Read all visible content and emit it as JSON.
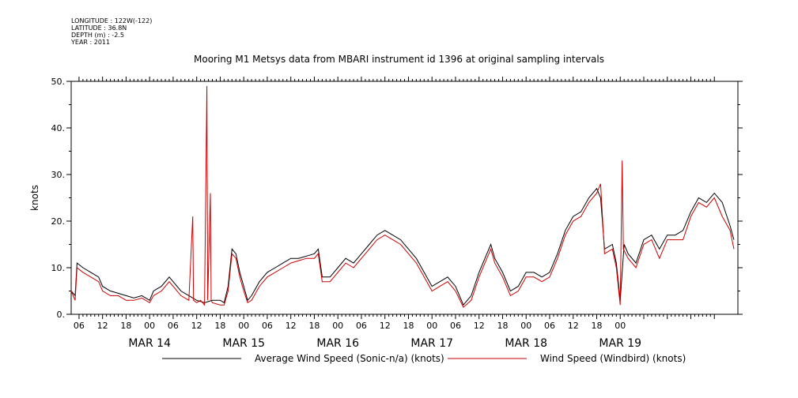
{
  "meta": {
    "longitude": "LONGITUDE : 122W(-122)",
    "latitude": "LATITUDE : 36.8N",
    "depth": "DEPTH (m) : -2.5",
    "year": "YEAR : 2011"
  },
  "chart_data": {
    "type": "line",
    "title": "Mooring M1 Metsys data from MBARI instrument id 1396 at original sampling intervals",
    "xlabel": "",
    "ylabel": "knots",
    "ylim": [
      0,
      50
    ],
    "yticks": [
      "0.",
      "10.",
      "20.",
      "30.",
      "40.",
      "50."
    ],
    "xlim_hours": [
      -20,
      138
    ],
    "hour_ticks": [
      "06",
      "12",
      "18",
      "00",
      "06",
      "12",
      "18",
      "00",
      "06",
      "12",
      "18",
      "00",
      "06",
      "12",
      "18",
      "00",
      "06",
      "12",
      "18",
      "00",
      "06",
      "12",
      "18",
      "00"
    ],
    "day_labels": [
      "MAR 14",
      "MAR 15",
      "MAR 16",
      "MAR 17",
      "MAR 18",
      "MAR 19"
    ],
    "x_unit": "hours since MAR 14 00:00",
    "series": [
      {
        "name": "Average Wind Speed (Sonic-n/a) (knots)",
        "color": "#000000",
        "points": [
          [
            -20,
            5
          ],
          [
            -19,
            4
          ],
          [
            -18.5,
            11
          ],
          [
            -17,
            10
          ],
          [
            -15,
            9
          ],
          [
            -13,
            8
          ],
          [
            -12,
            6
          ],
          [
            -10,
            5
          ],
          [
            -8,
            4.5
          ],
          [
            -6,
            4
          ],
          [
            -4,
            3.5
          ],
          [
            -2,
            4
          ],
          [
            0,
            3
          ],
          [
            1,
            5
          ],
          [
            3,
            6
          ],
          [
            5,
            8
          ],
          [
            6,
            7
          ],
          [
            8,
            5
          ],
          [
            10,
            4
          ],
          [
            12,
            3
          ],
          [
            14,
            2.5
          ],
          [
            16,
            3
          ],
          [
            18,
            3
          ],
          [
            19,
            2.5
          ],
          [
            20,
            6
          ],
          [
            21,
            14
          ],
          [
            22,
            13
          ],
          [
            23,
            9
          ],
          [
            24,
            6
          ],
          [
            25,
            3
          ],
          [
            26,
            4
          ],
          [
            28,
            7
          ],
          [
            30,
            9
          ],
          [
            32,
            10
          ],
          [
            34,
            11
          ],
          [
            36,
            12
          ],
          [
            38,
            12
          ],
          [
            40,
            12.5
          ],
          [
            42,
            13
          ],
          [
            43,
            14
          ],
          [
            44,
            8
          ],
          [
            46,
            8
          ],
          [
            48,
            10
          ],
          [
            50,
            12
          ],
          [
            52,
            11
          ],
          [
            54,
            13
          ],
          [
            56,
            15
          ],
          [
            58,
            17
          ],
          [
            60,
            18
          ],
          [
            62,
            17
          ],
          [
            64,
            16
          ],
          [
            66,
            14
          ],
          [
            68,
            12
          ],
          [
            70,
            9
          ],
          [
            72,
            6
          ],
          [
            74,
            7
          ],
          [
            76,
            8
          ],
          [
            78,
            6
          ],
          [
            80,
            2
          ],
          [
            82,
            4
          ],
          [
            84,
            9
          ],
          [
            86,
            13
          ],
          [
            87,
            15
          ],
          [
            88,
            12
          ],
          [
            90,
            9
          ],
          [
            92,
            5
          ],
          [
            94,
            6
          ],
          [
            96,
            9
          ],
          [
            98,
            9
          ],
          [
            100,
            8
          ],
          [
            102,
            9
          ],
          [
            104,
            13
          ],
          [
            106,
            18
          ],
          [
            108,
            21
          ],
          [
            110,
            22
          ],
          [
            112,
            25
          ],
          [
            114,
            27
          ],
          [
            115,
            25
          ],
          [
            116,
            14
          ],
          [
            118,
            15
          ],
          [
            119,
            11
          ],
          [
            120,
            3
          ],
          [
            121,
            15
          ],
          [
            122,
            13
          ],
          [
            124,
            11
          ],
          [
            126,
            16
          ],
          [
            128,
            17
          ],
          [
            130,
            14
          ],
          [
            132,
            17
          ],
          [
            134,
            17
          ],
          [
            136,
            18
          ],
          [
            138,
            22
          ],
          [
            140,
            25
          ],
          [
            142,
            24
          ],
          [
            144,
            26
          ],
          [
            146,
            24
          ],
          [
            148,
            19
          ],
          [
            149,
            16
          ]
        ]
      },
      {
        "name": "Wind Speed (Windbird) (knots)",
        "color": "#cc0000",
        "points": [
          [
            -20,
            5
          ],
          [
            -19,
            3
          ],
          [
            -18.5,
            10
          ],
          [
            -17,
            9
          ],
          [
            -15,
            8
          ],
          [
            -13,
            7
          ],
          [
            -12,
            5
          ],
          [
            -10,
            4
          ],
          [
            -8,
            4
          ],
          [
            -6,
            3
          ],
          [
            -4,
            3
          ],
          [
            -2,
            3.5
          ],
          [
            0,
            2.5
          ],
          [
            1,
            4
          ],
          [
            3,
            5
          ],
          [
            5,
            7
          ],
          [
            6,
            6
          ],
          [
            8,
            4
          ],
          [
            10,
            3
          ],
          [
            11,
            21
          ],
          [
            11.2,
            3
          ],
          [
            12,
            2.5
          ],
          [
            13,
            3
          ],
          [
            14,
            2
          ],
          [
            14.6,
            49
          ],
          [
            14.8,
            3
          ],
          [
            15.5,
            26
          ],
          [
            15.7,
            3
          ],
          [
            16,
            2.5
          ],
          [
            18,
            2
          ],
          [
            19,
            2
          ],
          [
            20,
            5
          ],
          [
            21,
            13
          ],
          [
            22,
            12
          ],
          [
            23,
            8
          ],
          [
            24,
            5
          ],
          [
            25,
            2.5
          ],
          [
            26,
            3
          ],
          [
            28,
            6
          ],
          [
            30,
            8
          ],
          [
            32,
            9
          ],
          [
            34,
            10
          ],
          [
            36,
            11
          ],
          [
            38,
            11.5
          ],
          [
            40,
            12
          ],
          [
            42,
            12
          ],
          [
            43,
            13
          ],
          [
            44,
            7
          ],
          [
            46,
            7
          ],
          [
            48,
            9
          ],
          [
            50,
            11
          ],
          [
            52,
            10
          ],
          [
            54,
            12
          ],
          [
            56,
            14
          ],
          [
            58,
            16
          ],
          [
            60,
            17
          ],
          [
            62,
            16
          ],
          [
            64,
            15
          ],
          [
            66,
            13
          ],
          [
            68,
            11
          ],
          [
            70,
            8
          ],
          [
            72,
            5
          ],
          [
            74,
            6
          ],
          [
            76,
            7
          ],
          [
            78,
            5
          ],
          [
            80,
            1.5
          ],
          [
            82,
            3
          ],
          [
            84,
            8
          ],
          [
            86,
            12
          ],
          [
            87,
            14
          ],
          [
            88,
            11
          ],
          [
            90,
            8
          ],
          [
            92,
            4
          ],
          [
            94,
            5
          ],
          [
            96,
            8
          ],
          [
            98,
            8
          ],
          [
            100,
            7
          ],
          [
            102,
            8
          ],
          [
            104,
            12
          ],
          [
            106,
            17
          ],
          [
            108,
            20
          ],
          [
            110,
            21
          ],
          [
            112,
            24
          ],
          [
            114,
            26
          ],
          [
            115,
            28
          ],
          [
            116,
            13
          ],
          [
            118,
            14
          ],
          [
            119,
            10
          ],
          [
            120,
            2
          ],
          [
            120.5,
            33
          ],
          [
            120.8,
            14
          ],
          [
            122,
            12
          ],
          [
            124,
            10
          ],
          [
            126,
            15
          ],
          [
            128,
            16
          ],
          [
            130,
            12
          ],
          [
            132,
            16
          ],
          [
            134,
            16
          ],
          [
            136,
            16
          ],
          [
            138,
            21
          ],
          [
            140,
            24
          ],
          [
            142,
            23
          ],
          [
            144,
            25
          ],
          [
            146,
            21
          ],
          [
            148,
            18
          ],
          [
            149,
            14
          ]
        ]
      }
    ],
    "legend_position": "bottom"
  }
}
